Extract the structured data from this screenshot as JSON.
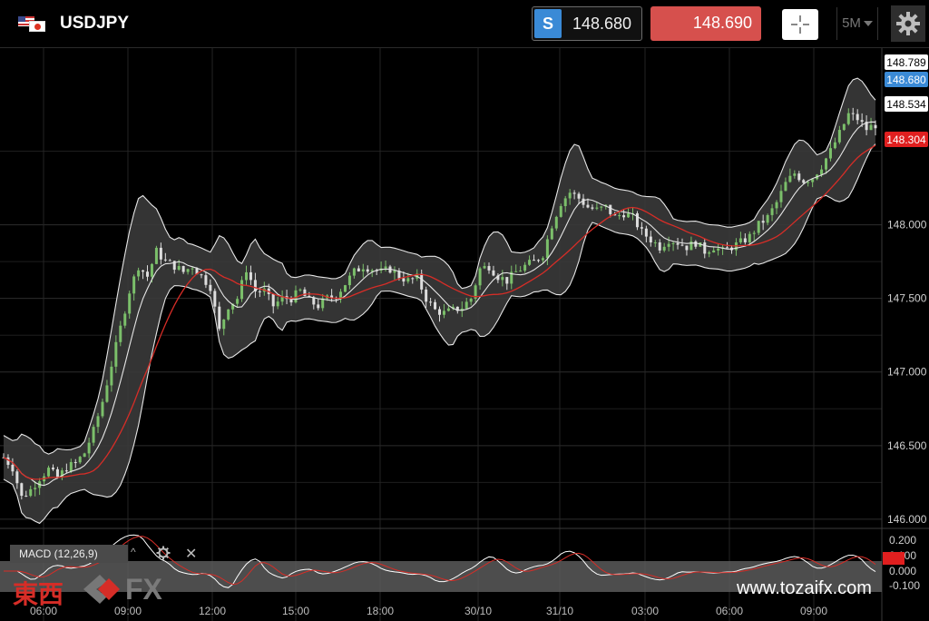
{
  "header": {
    "symbol": "USDJPY",
    "sell_label": "S",
    "sell_price": "148.680",
    "buy_price": "148.690",
    "timeframe": "5M"
  },
  "icons": {
    "flags": "us-jp-flag-icon",
    "crosshair": "crosshair-icon",
    "settings": "gear-icon",
    "macd_up": "arrow-up-icon",
    "macd_settings": "gear-icon",
    "macd_close": "close-icon"
  },
  "colors": {
    "background": "#000000",
    "sell_badge": "#3a8ad6",
    "buy_button": "#d6504d",
    "sma_line": "#d62d27",
    "band_fill": "#3a3a3a",
    "up_candle": "#7bbf6a",
    "down_candle": "#dddddd"
  },
  "chart_data": {
    "type": "candlestick",
    "indicators": [
      "Bollinger Bands",
      "Moving Average",
      "MACD (12,26,9)"
    ],
    "y_ticks": [
      "148.000",
      "147.500",
      "147.000",
      "146.500",
      "146.000"
    ],
    "x_ticks": [
      "06:00",
      "09:00",
      "12:00",
      "15:00",
      "18:00",
      "30/10",
      "31/10",
      "03:00",
      "06:00",
      "09:00"
    ],
    "ylim": [
      145.95,
      149.2
    ],
    "price_tags": [
      {
        "label": "148.789",
        "value": 148.789,
        "style": "upper-band"
      },
      {
        "label": "148.680",
        "value": 148.68,
        "style": "current-bid"
      },
      {
        "label": "148.534",
        "value": 148.534,
        "style": "middle-band"
      },
      {
        "label": "148.304",
        "value": 148.304,
        "style": "moving-average"
      }
    ],
    "close_path": [
      {
        "x": 0,
        "y": 146.42
      },
      {
        "x": 2,
        "y": 146.35
      },
      {
        "x": 4,
        "y": 146.15
      },
      {
        "x": 6,
        "y": 146.2
      },
      {
        "x": 8,
        "y": 146.28
      },
      {
        "x": 10,
        "y": 146.34
      },
      {
        "x": 12,
        "y": 146.28
      },
      {
        "x": 14,
        "y": 146.35
      },
      {
        "x": 16,
        "y": 146.38
      },
      {
        "x": 18,
        "y": 146.45
      },
      {
        "x": 20,
        "y": 146.6
      },
      {
        "x": 22,
        "y": 146.8
      },
      {
        "x": 24,
        "y": 147.05
      },
      {
        "x": 26,
        "y": 147.3
      },
      {
        "x": 28,
        "y": 147.55
      },
      {
        "x": 30,
        "y": 147.72
      },
      {
        "x": 32,
        "y": 147.65
      },
      {
        "x": 34,
        "y": 147.82
      },
      {
        "x": 36,
        "y": 147.75
      },
      {
        "x": 38,
        "y": 147.72
      },
      {
        "x": 40,
        "y": 147.68
      },
      {
        "x": 42,
        "y": 147.72
      },
      {
        "x": 44,
        "y": 147.65
      },
      {
        "x": 46,
        "y": 147.58
      },
      {
        "x": 48,
        "y": 147.28
      },
      {
        "x": 50,
        "y": 147.45
      },
      {
        "x": 52,
        "y": 147.5
      },
      {
        "x": 54,
        "y": 147.7
      },
      {
        "x": 56,
        "y": 147.55
      },
      {
        "x": 58,
        "y": 147.55
      },
      {
        "x": 60,
        "y": 147.45
      },
      {
        "x": 62,
        "y": 147.5
      },
      {
        "x": 64,
        "y": 147.5
      },
      {
        "x": 66,
        "y": 147.55
      },
      {
        "x": 68,
        "y": 147.48
      },
      {
        "x": 70,
        "y": 147.45
      },
      {
        "x": 72,
        "y": 147.5
      },
      {
        "x": 74,
        "y": 147.52
      },
      {
        "x": 76,
        "y": 147.6
      },
      {
        "x": 78,
        "y": 147.68
      },
      {
        "x": 80,
        "y": 147.72
      },
      {
        "x": 82,
        "y": 147.7
      },
      {
        "x": 84,
        "y": 147.68
      },
      {
        "x": 86,
        "y": 147.7
      },
      {
        "x": 88,
        "y": 147.65
      },
      {
        "x": 90,
        "y": 147.62
      },
      {
        "x": 92,
        "y": 147.64
      },
      {
        "x": 94,
        "y": 147.5
      },
      {
        "x": 96,
        "y": 147.42
      },
      {
        "x": 98,
        "y": 147.4
      },
      {
        "x": 100,
        "y": 147.42
      },
      {
        "x": 102,
        "y": 147.44
      },
      {
        "x": 104,
        "y": 147.5
      },
      {
        "x": 106,
        "y": 147.7
      },
      {
        "x": 108,
        "y": 147.72
      },
      {
        "x": 110,
        "y": 147.65
      },
      {
        "x": 112,
        "y": 147.62
      },
      {
        "x": 114,
        "y": 147.68
      },
      {
        "x": 116,
        "y": 147.72
      },
      {
        "x": 118,
        "y": 147.75
      },
      {
        "x": 120,
        "y": 147.8
      },
      {
        "x": 122,
        "y": 148.0
      },
      {
        "x": 124,
        "y": 148.15
      },
      {
        "x": 126,
        "y": 148.22
      },
      {
        "x": 128,
        "y": 148.18
      },
      {
        "x": 130,
        "y": 148.12
      },
      {
        "x": 132,
        "y": 148.1
      },
      {
        "x": 134,
        "y": 148.12
      },
      {
        "x": 136,
        "y": 148.05
      },
      {
        "x": 138,
        "y": 148.08
      },
      {
        "x": 140,
        "y": 148.05
      },
      {
        "x": 142,
        "y": 147.95
      },
      {
        "x": 144,
        "y": 147.9
      },
      {
        "x": 146,
        "y": 147.85
      },
      {
        "x": 148,
        "y": 147.9
      },
      {
        "x": 150,
        "y": 147.88
      },
      {
        "x": 152,
        "y": 147.85
      },
      {
        "x": 154,
        "y": 147.88
      },
      {
        "x": 156,
        "y": 147.82
      },
      {
        "x": 158,
        "y": 147.85
      },
      {
        "x": 160,
        "y": 147.82
      },
      {
        "x": 162,
        "y": 147.85
      },
      {
        "x": 164,
        "y": 147.88
      },
      {
        "x": 166,
        "y": 147.92
      },
      {
        "x": 168,
        "y": 148.0
      },
      {
        "x": 170,
        "y": 148.05
      },
      {
        "x": 172,
        "y": 148.15
      },
      {
        "x": 174,
        "y": 148.28
      },
      {
        "x": 176,
        "y": 148.35
      },
      {
        "x": 178,
        "y": 148.3
      },
      {
        "x": 180,
        "y": 148.32
      },
      {
        "x": 182,
        "y": 148.4
      },
      {
        "x": 184,
        "y": 148.5
      },
      {
        "x": 186,
        "y": 148.62
      },
      {
        "x": 188,
        "y": 148.75
      },
      {
        "x": 190,
        "y": 148.72
      },
      {
        "x": 192,
        "y": 148.65
      },
      {
        "x": 194,
        "y": 148.68
      }
    ]
  },
  "macd": {
    "label": "MACD (12,26,9)",
    "y_ticks": [
      "0.200",
      "0.100",
      "0.000",
      "-0.100"
    ]
  },
  "logo": {
    "jp_text": "東西",
    "fx_text": "FX"
  },
  "watermark": "www.tozaifx.com"
}
